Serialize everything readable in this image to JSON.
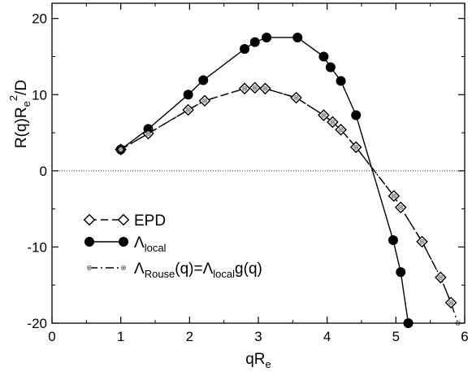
{
  "chart_data": {
    "type": "line",
    "xlabel": {
      "main": "qR",
      "sub": "e"
    },
    "ylabel": {
      "main": "R(q)R",
      "sub": "e",
      "sup": "2",
      "tail": "/D"
    },
    "xlim": [
      0,
      6
    ],
    "ylim": [
      -20,
      22
    ],
    "xticks": [
      0,
      1,
      2,
      3,
      4,
      5,
      6
    ],
    "yticks": [
      -20,
      -10,
      0,
      10,
      20
    ],
    "xtick_labels": [
      "0",
      "1",
      "2",
      "3",
      "4",
      "5",
      "6"
    ],
    "ytick_labels": [
      "-20",
      "-10",
      "0",
      "10",
      "20"
    ],
    "reference_line": {
      "y": 0,
      "style": "dotted"
    },
    "legend_position": "lower-left",
    "series": [
      {
        "name": "EPD",
        "legend_parts": [
          {
            "t": "EPD"
          }
        ],
        "style": "dashed",
        "marker": "open-diamond",
        "color": "#000000",
        "x": [
          1.0,
          1.4,
          1.98,
          2.22,
          2.8,
          2.95,
          3.1,
          3.55,
          3.95,
          4.08,
          4.2,
          4.42,
          4.97,
          5.07,
          5.38,
          5.65,
          5.8
        ],
        "y": [
          2.8,
          4.9,
          8.0,
          9.2,
          10.8,
          10.9,
          10.8,
          9.6,
          7.3,
          6.4,
          5.4,
          3.1,
          -3.3,
          -4.8,
          -9.3,
          -14.0,
          -17.3
        ]
      },
      {
        "name": "Λlocal",
        "legend_parts": [
          {
            "t": "Λ"
          },
          {
            "t": "local",
            "sub": true
          }
        ],
        "style": "solid",
        "marker": "filled-circle",
        "color": "#000000",
        "x": [
          1.0,
          1.4,
          1.98,
          2.2,
          2.8,
          2.95,
          3.12,
          3.57,
          3.95,
          4.05,
          4.2,
          4.42,
          4.96,
          5.07,
          5.18
        ],
        "y": [
          2.8,
          5.5,
          10.0,
          11.9,
          16.0,
          16.9,
          17.5,
          17.5,
          15.0,
          13.6,
          11.8,
          7.3,
          -9.1,
          -13.3,
          -20.0
        ]
      },
      {
        "name": "ΛRouse(q)=Λlocalg(q)",
        "legend_parts": [
          {
            "t": "Λ"
          },
          {
            "t": "Rouse",
            "sub": true
          },
          {
            "t": "(q)=Λ"
          },
          {
            "t": "local",
            "sub": true
          },
          {
            "t": "g(q)"
          }
        ],
        "style": "dash-dot",
        "marker": "small-hatched-circle",
        "color": "#000000",
        "x": [
          1.0,
          1.4,
          1.98,
          2.22,
          2.8,
          2.95,
          3.1,
          3.55,
          3.95,
          4.08,
          4.2,
          4.42,
          4.97,
          5.07,
          5.38,
          5.65,
          5.8,
          5.9
        ],
        "y": [
          2.8,
          4.9,
          8.0,
          9.2,
          10.8,
          10.9,
          10.8,
          9.6,
          7.3,
          6.4,
          5.4,
          3.1,
          -3.3,
          -4.8,
          -9.3,
          -14.0,
          -17.3,
          -20.0
        ]
      }
    ]
  }
}
